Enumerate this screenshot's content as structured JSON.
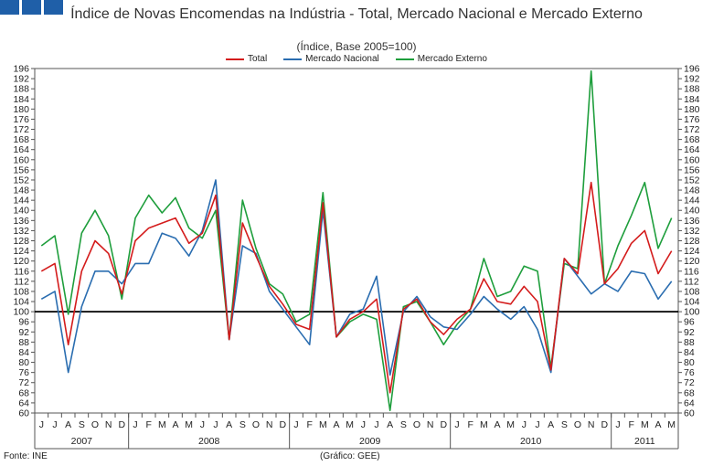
{
  "header": {
    "title": "Índice de Novas Encomendas na Indústria - Total, Mercado Nacional e Mercado Externo",
    "subtitle": "(Índice, Base 2005=100)"
  },
  "footer": {
    "source": "Fonte: INE",
    "credit": "(Gráfico: GEE)"
  },
  "colors": {
    "total": "#d41c1c",
    "nacional": "#2a6db0",
    "externo": "#1e9e3c",
    "reference": "#000000",
    "logo": "#1f5fa8"
  },
  "chart_data": {
    "type": "line",
    "title": "Índice de Novas Encomendas na Indústria - Total, Mercado Nacional e Mercado Externo",
    "subtitle": "(Índice, Base 2005=100)",
    "xlabel": "",
    "ylabel": "",
    "ylim": [
      60,
      196
    ],
    "ytick_step": 4,
    "grid": false,
    "legend": "top-center",
    "reference_line": 100,
    "categories": [
      "J",
      "J",
      "A",
      "S",
      "O",
      "N",
      "D",
      "J",
      "F",
      "M",
      "A",
      "M",
      "J",
      "J",
      "A",
      "S",
      "O",
      "N",
      "D",
      "J",
      "F",
      "M",
      "A",
      "M",
      "J",
      "J",
      "A",
      "S",
      "O",
      "N",
      "D",
      "J",
      "F",
      "M",
      "A",
      "M",
      "J",
      "J",
      "A",
      "S",
      "O",
      "N",
      "D",
      "J",
      "F",
      "M",
      "A",
      "M"
    ],
    "years": [
      {
        "label": "2007",
        "start": 0,
        "count": 7
      },
      {
        "label": "2008",
        "start": 7,
        "count": 12
      },
      {
        "label": "2009",
        "start": 19,
        "count": 12
      },
      {
        "label": "2010",
        "start": 31,
        "count": 12
      },
      {
        "label": "2011",
        "start": 43,
        "count": 5
      }
    ],
    "series": [
      {
        "name": "Total",
        "key": "total",
        "values": [
          116,
          119,
          87,
          116,
          128,
          123,
          107,
          128,
          133,
          135,
          137,
          127,
          131,
          146,
          89,
          135,
          122,
          110,
          103,
          95,
          93,
          143,
          90,
          97,
          100,
          105,
          68,
          101,
          105,
          96,
          91,
          97,
          101,
          113,
          104,
          103,
          110,
          104,
          77,
          121,
          115,
          151,
          111,
          117,
          127,
          132,
          115,
          124
        ]
      },
      {
        "name": "Mercado Nacional",
        "key": "nacional",
        "values": [
          105,
          108,
          76,
          102,
          116,
          116,
          111,
          119,
          119,
          131,
          129,
          122,
          132,
          152,
          89,
          126,
          123,
          108,
          101,
          94,
          87,
          140,
          90,
          99,
          101,
          114,
          75,
          100,
          106,
          98,
          94,
          93,
          99,
          106,
          101,
          97,
          102,
          93,
          76,
          121,
          114,
          107,
          111,
          108,
          116,
          115,
          105,
          112
        ]
      },
      {
        "name": "Mercado Externo",
        "key": "externo",
        "values": [
          126,
          130,
          99,
          131,
          140,
          130,
          105,
          137,
          146,
          139,
          145,
          133,
          129,
          140,
          89,
          144,
          125,
          111,
          107,
          96,
          99,
          147,
          90,
          96,
          99,
          97,
          61,
          102,
          104,
          96,
          87,
          95,
          101,
          121,
          106,
          108,
          118,
          116,
          78,
          119,
          117,
          195,
          111,
          126,
          138,
          151,
          125,
          137
        ]
      }
    ]
  }
}
